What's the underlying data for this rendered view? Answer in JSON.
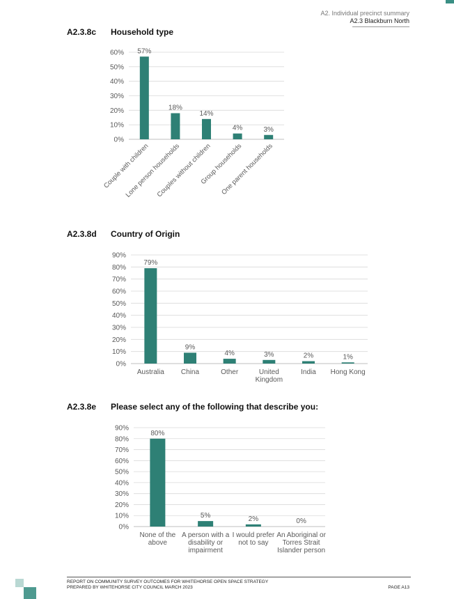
{
  "header": {
    "line1": "A2. Individual precinct summary",
    "line2": "A2.3 Blackburn North"
  },
  "sections": [
    {
      "number": "A2.3.8c",
      "title": "Household type"
    },
    {
      "number": "A2.3.8d",
      "title": "Country of Origin"
    },
    {
      "number": "A2.3.8e",
      "title": "Please select any of the following that describe you:"
    }
  ],
  "colors": {
    "bar": "#2e8075",
    "grid": "#d9d9d9",
    "axis": "#bfbfbf",
    "text": "#595959"
  },
  "chart_data": [
    {
      "type": "bar",
      "title": "Household type",
      "categories": [
        "Couple with children",
        "Lone person households",
        "Couples without children",
        "Group households",
        "One parent households"
      ],
      "values": [
        57,
        18,
        14,
        4,
        3
      ],
      "data_labels": [
        "57%",
        "18%",
        "14%",
        "4%",
        "3%"
      ],
      "yticks": [
        "0%",
        "10%",
        "20%",
        "30%",
        "40%",
        "50%",
        "60%"
      ],
      "ylim": [
        0,
        60
      ],
      "grid": true,
      "legend": "none",
      "x_label_rotation": -45
    },
    {
      "type": "bar",
      "title": "Country of Origin",
      "categories": [
        [
          "Australia"
        ],
        [
          "China"
        ],
        [
          "Other"
        ],
        [
          "United",
          "Kingdom"
        ],
        [
          "India"
        ],
        [
          "Hong Kong"
        ]
      ],
      "values": [
        79,
        9,
        4,
        3,
        2,
        1
      ],
      "data_labels": [
        "79%",
        "9%",
        "4%",
        "3%",
        "2%",
        "1%"
      ],
      "yticks": [
        "0%",
        "10%",
        "20%",
        "30%",
        "40%",
        "50%",
        "60%",
        "70%",
        "80%",
        "90%"
      ],
      "ylim": [
        0,
        90
      ],
      "grid": true,
      "legend": "none"
    },
    {
      "type": "bar",
      "title": "Please select any of the following that describe you:",
      "categories": [
        [
          "None of the",
          "above"
        ],
        [
          "A person with a",
          "disability or",
          "impairment"
        ],
        [
          "I would prefer",
          "not to say"
        ],
        [
          "An Aboriginal or",
          "Torres Strait",
          "Islander person"
        ]
      ],
      "values": [
        80,
        5,
        2,
        0
      ],
      "data_labels": [
        "80%",
        "5%",
        "2%",
        "0%"
      ],
      "yticks": [
        "0%",
        "10%",
        "20%",
        "30%",
        "40%",
        "50%",
        "60%",
        "70%",
        "80%",
        "90%"
      ],
      "ylim": [
        0,
        90
      ],
      "grid": true,
      "legend": "none"
    }
  ],
  "footer": {
    "line1": "REPORT ON COMMUNITY SURVEY OUTCOMES FOR WHITEHORSE OPEN SPACE STRATEGY",
    "line2": "PREPARED BY WHITEHORSE CITY COUNCIL MARCH 2023",
    "page": "PAGE A13"
  }
}
